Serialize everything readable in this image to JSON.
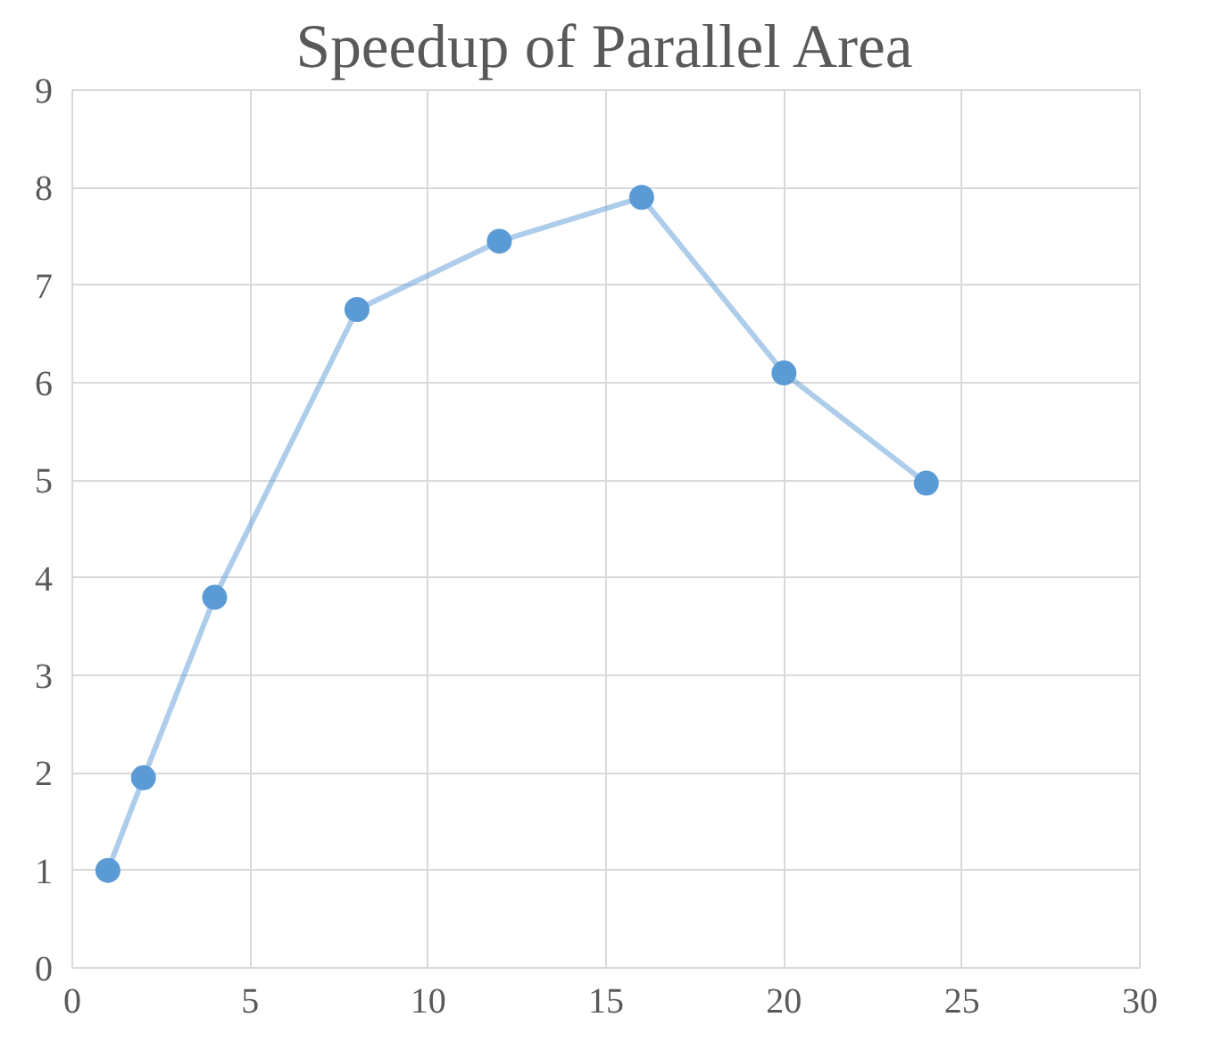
{
  "chart_data": {
    "type": "line",
    "title": "Speedup of Parallel Area",
    "x": [
      1,
      2,
      4,
      8,
      12,
      16,
      20,
      24
    ],
    "series": [
      {
        "color": "#5b9bd5",
        "values": [
          1.0,
          1.95,
          3.8,
          6.75,
          7.45,
          7.9,
          6.1,
          4.97
        ]
      }
    ],
    "xlim": [
      0,
      30
    ],
    "xticks": [
      0,
      5,
      10,
      15,
      20,
      25,
      30
    ],
    "ylim": [
      0,
      9
    ],
    "yticks": [
      0,
      1,
      2,
      3,
      4,
      5,
      6,
      7,
      8,
      9
    ],
    "grid": true,
    "marker": "circle",
    "line_style": "solid"
  }
}
